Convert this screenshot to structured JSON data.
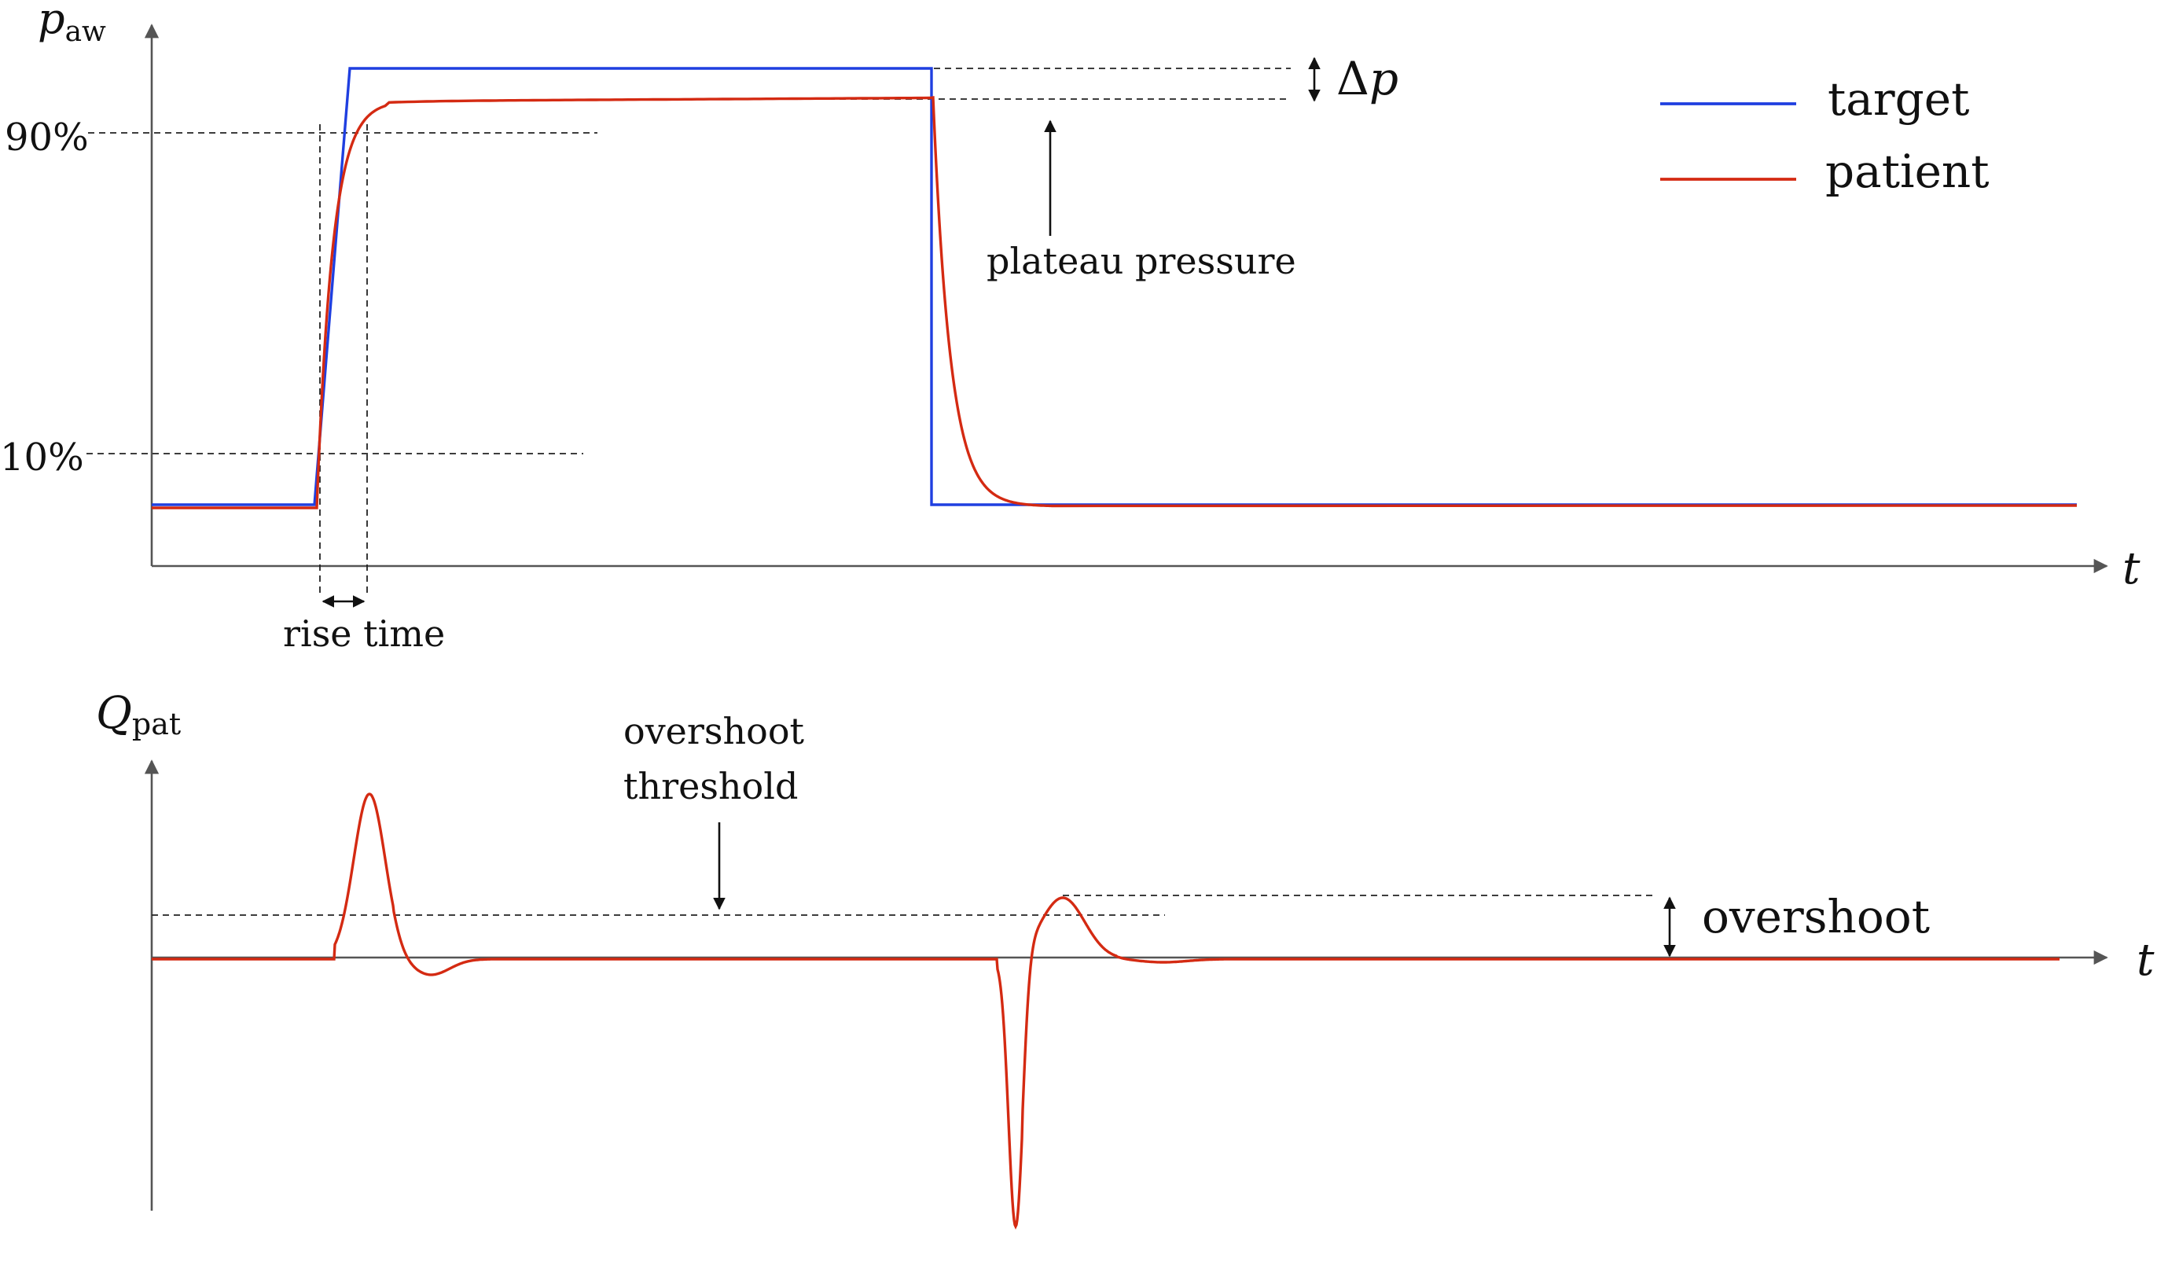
{
  "colors": {
    "target": "#1f3fe0",
    "patient": "#d42a12",
    "axis": "#555555",
    "annotation": "#111111"
  },
  "top_panel": {
    "y_axis_label_main": "p",
    "y_axis_label_sub": "aw",
    "x_axis_label": "t",
    "label_90": "90%",
    "label_10": "10%",
    "rise_time": "rise time",
    "plateau_pressure": "plateau pressure",
    "delta_p_symbol": "Δ",
    "delta_p_var": "p",
    "legend": [
      {
        "label": "target",
        "color": "#1f3fe0"
      },
      {
        "label": "patient",
        "color": "#d42a12"
      }
    ]
  },
  "bottom_panel": {
    "y_axis_label_main": "Q",
    "y_axis_label_sub": "pat",
    "x_axis_label": "t",
    "threshold_line1": "overshoot",
    "threshold_line2": "threshold",
    "overshoot": "overshoot"
  }
}
